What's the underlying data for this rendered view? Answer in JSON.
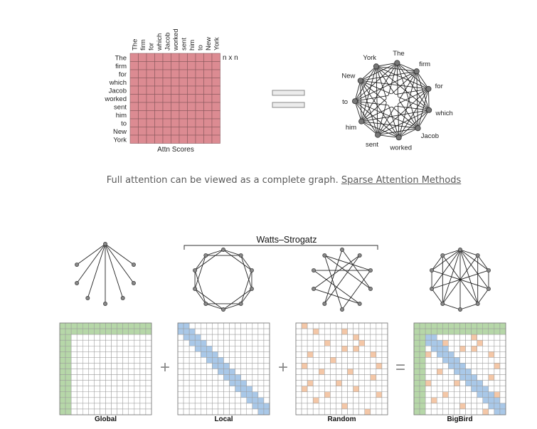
{
  "top_figure": {
    "tokens": [
      "The",
      "firm",
      "for",
      "which",
      "Jacob",
      "worked",
      "sent",
      "him",
      "to",
      "New",
      "York"
    ],
    "matrix_label": "n x n",
    "matrix_caption": "Attn Scores",
    "matrix_color": "#dc8b92",
    "equals_fill": "#ececec"
  },
  "caption": {
    "text": "Full attention can be viewed as a complete graph. ",
    "link_text": "Sparse Attention Methods"
  },
  "bottom_figure": {
    "group_label": "Watts–Strogatz",
    "operators": {
      "plus": "+",
      "equals": "="
    },
    "panels": [
      {
        "key": "global",
        "label": "Global"
      },
      {
        "key": "local",
        "label": "Local"
      },
      {
        "key": "random",
        "label": "Random"
      },
      {
        "key": "bigbird",
        "label": "BigBird"
      }
    ],
    "colors": {
      "global": "#b6d7a8",
      "local": "#a9c8e8",
      "random": "#f4c7a7"
    },
    "grid_size": 16,
    "random_cells": [
      [
        0,
        1
      ],
      [
        1,
        3
      ],
      [
        1,
        8
      ],
      [
        2,
        10
      ],
      [
        3,
        5
      ],
      [
        3,
        11
      ],
      [
        4,
        8
      ],
      [
        4,
        10
      ],
      [
        5,
        2
      ],
      [
        5,
        13
      ],
      [
        6,
        6
      ],
      [
        7,
        1
      ],
      [
        7,
        14
      ],
      [
        8,
        4
      ],
      [
        8,
        9
      ],
      [
        9,
        13
      ],
      [
        10,
        2
      ],
      [
        10,
        7
      ],
      [
        11,
        1
      ],
      [
        11,
        10
      ],
      [
        12,
        5
      ],
      [
        12,
        14
      ],
      [
        13,
        3
      ],
      [
        14,
        8
      ],
      [
        15,
        12
      ]
    ]
  }
}
